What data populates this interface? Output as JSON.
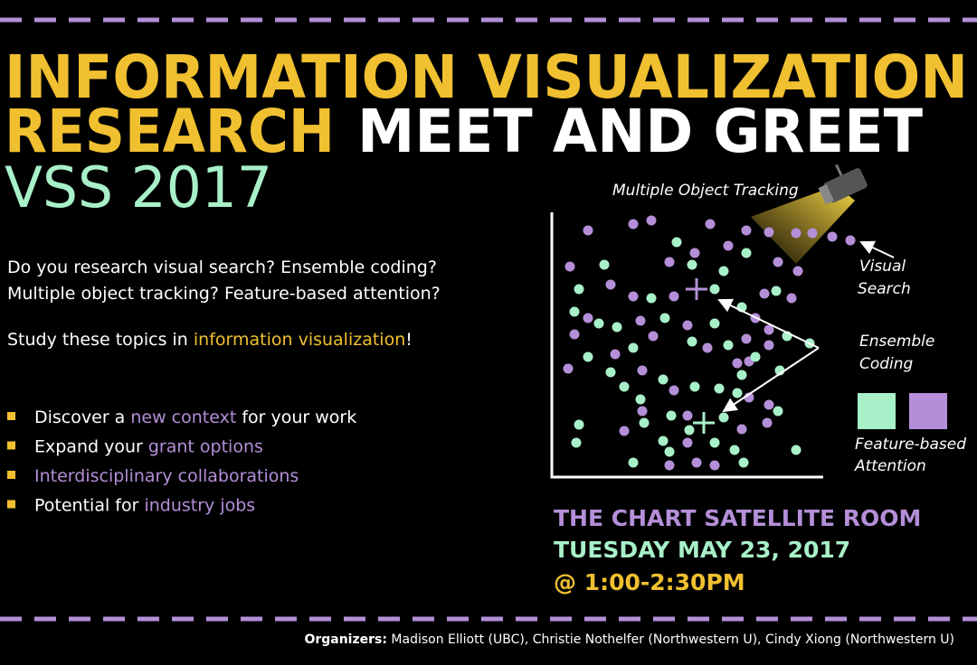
{
  "header": {
    "title_line1": "INFORMATION VISUALIZATION",
    "title_line2a": "RESEARCH",
    "title_line2b": "MEET AND GREET",
    "subtitle": "VSS 2017"
  },
  "intro": {
    "line1": "Do you research visual search? Ensemble coding?",
    "line2": "Multiple object tracking? Feature-based attention?",
    "study": [
      {
        "text": "Study these topics in "
      },
      {
        "text": "information visualization",
        "highlight": true
      },
      {
        "text": "!"
      }
    ]
  },
  "bullets": [
    [
      {
        "text": "Discover a "
      },
      {
        "text": "new context",
        "highlight": true
      },
      {
        "text": " for your work"
      }
    ],
    [
      {
        "text": "Expand your "
      },
      {
        "text": "grant options",
        "highlight": true
      }
    ],
    [
      {
        "text": "Interdisciplinary collaborations",
        "highlight": true
      }
    ],
    [
      {
        "text": "Potential for "
      },
      {
        "text": "industry jobs",
        "highlight": true
      }
    ]
  ],
  "diagram": {
    "tracking": "Multiple Object Tracking",
    "visual": "Visual",
    "search": "Search",
    "ensemble": "Ensemble",
    "coding": "Coding",
    "feature": "Feature-based",
    "attention": "Attention"
  },
  "event": {
    "room": "THE CHART SATELLITE ROOM",
    "date": "TUESDAY MAY 23, 2017",
    "time": "@ 1:00-2:30PM"
  },
  "organizers": {
    "label": "Organizers:",
    "names": "Madison Elliott (UBC), Christie Nothelfer (Northwestern U), Cindy Xiong (Northwestern U)"
  }
}
